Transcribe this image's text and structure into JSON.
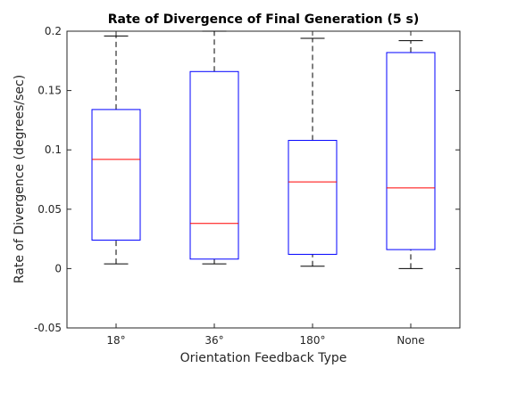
{
  "chart_data": {
    "type": "box",
    "title": "Rate of Divergence of Final Generation (5 s)",
    "xlabel": "Orientation Feedback Type",
    "ylabel": "Rate of Divergence (degrees/sec)",
    "categories": [
      "18°",
      "36°",
      "180°",
      "None"
    ],
    "ylim": [
      -0.05,
      0.2
    ],
    "yticks": [
      -0.05,
      0,
      0.05,
      0.1,
      0.15,
      0.2
    ],
    "ytick_labels": [
      "-0.05",
      "0",
      "0.05",
      "0.1",
      "0.15",
      "0.2"
    ],
    "boxes": [
      {
        "category": "18°",
        "whisker_low": 0.004,
        "q1": 0.024,
        "median": 0.092,
        "q3": 0.134,
        "whisker_high": 0.196
      },
      {
        "category": "36°",
        "whisker_low": 0.004,
        "q1": 0.008,
        "median": 0.038,
        "q3": 0.166,
        "whisker_high": 0.2
      },
      {
        "category": "180°",
        "whisker_low": 0.002,
        "q1": 0.012,
        "median": 0.073,
        "q3": 0.108,
        "whisker_high": 0.194
      },
      {
        "category": "None",
        "whisker_low": 0.0,
        "q1": 0.016,
        "median": 0.068,
        "q3": 0.182,
        "whisker_high": 0.192
      }
    ],
    "grid": false,
    "colors": {
      "box": "#0000ff",
      "median": "#ff0000",
      "whisker": "#000000",
      "axis": "#262626"
    }
  }
}
